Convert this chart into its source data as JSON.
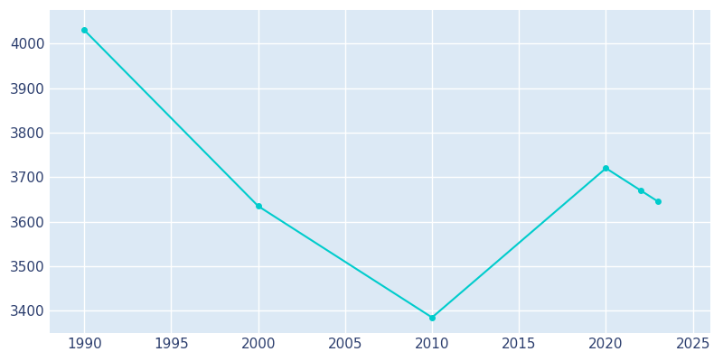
{
  "years": [
    1990,
    2000,
    2010,
    2020,
    2022,
    2023
  ],
  "population": [
    4030,
    3635,
    3385,
    3720,
    3670,
    3645
  ],
  "line_color": "#00CCCC",
  "marker": "o",
  "marker_size": 4,
  "axes_background_color": "#dce9f5",
  "figure_background_color": "#ffffff",
  "grid_color": "#ffffff",
  "ylim": [
    3350,
    4075
  ],
  "xlim": [
    1988,
    2026
  ],
  "yticks": [
    3400,
    3500,
    3600,
    3700,
    3800,
    3900,
    4000
  ],
  "xticks": [
    1990,
    1995,
    2000,
    2005,
    2010,
    2015,
    2020,
    2025
  ],
  "tick_label_color": "#2c3e6e",
  "tick_fontsize": 11,
  "linewidth": 1.5
}
